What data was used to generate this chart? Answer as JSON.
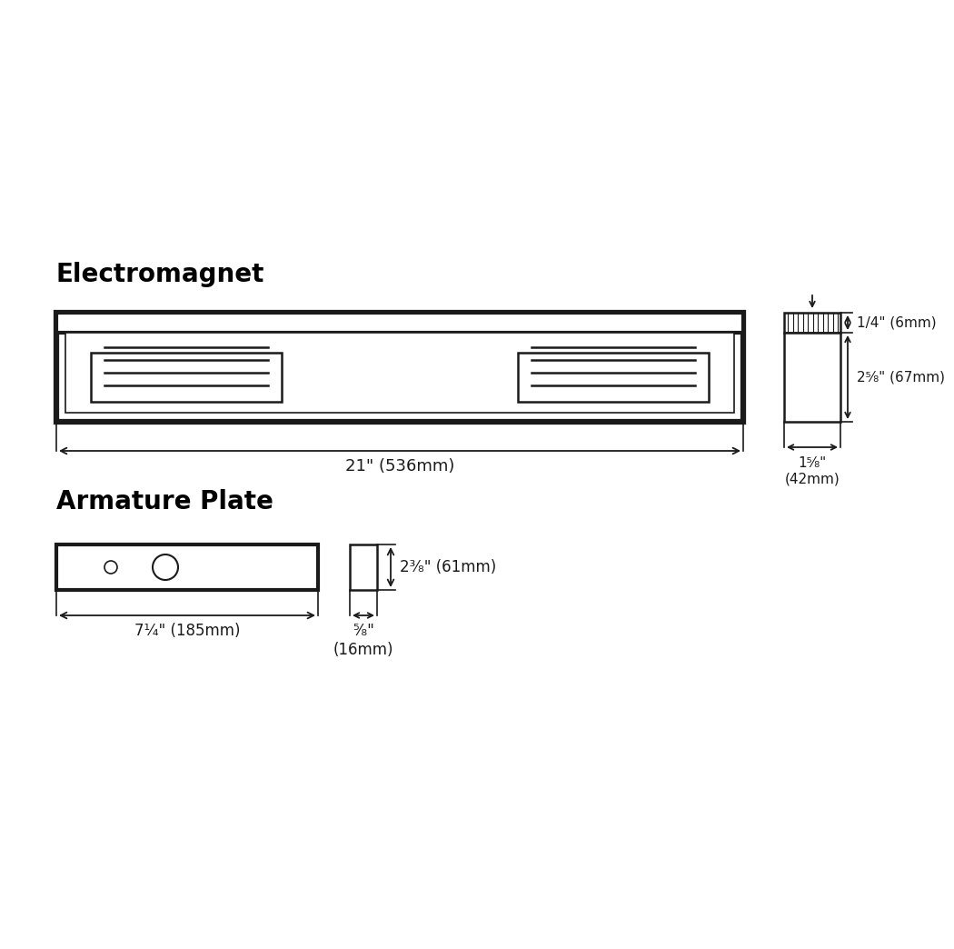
{
  "bg_color": "#ffffff",
  "line_color": "#1a1a1a",
  "title_color": "#000000",
  "electromagnet_label": "Electromagnet",
  "armature_label": "Armature Plate",
  "dim_21in": "21\" (536mm)",
  "dim_1_4in": "1/4\" (6mm)",
  "dim_2_5_8in": "2⁵⁄₈\" (67mm)",
  "dim_1_5_8in": "1⁵⁄₈\"\n(42mm)",
  "dim_7_1_4in": "7¹⁄₄\" (185mm)",
  "dim_2_3_8in": "2³⁄₈\" (61mm)",
  "dim_5_8in": "⁵⁄₈\"\n(16mm)"
}
